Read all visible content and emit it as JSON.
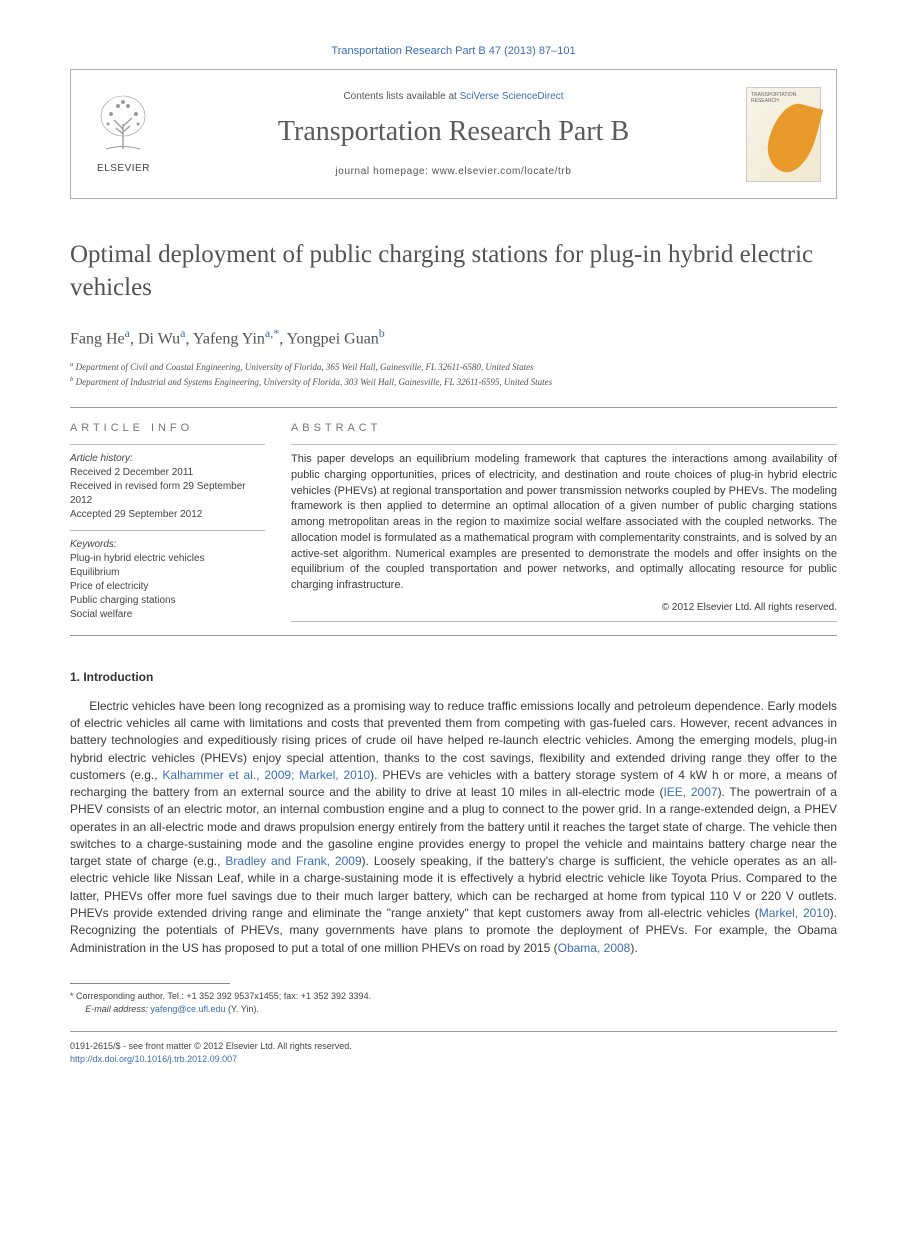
{
  "citation": "Transportation Research Part B 47 (2013) 87–101",
  "header": {
    "elsevier": "ELSEVIER",
    "contents_prefix": "Contents lists available at ",
    "contents_link": "SciVerse ScienceDirect",
    "journal_title": "Transportation Research Part B",
    "homepage_prefix": "journal homepage: ",
    "homepage_url": "www.elsevier.com/locate/trb",
    "cover_line1": "TRANSPORTATION",
    "cover_line2": "RESEARCH"
  },
  "article": {
    "title": "Optimal deployment of public charging stations for plug-in hybrid electric vehicles",
    "authors_html": [
      {
        "name": "Fang He",
        "aff": "a"
      },
      {
        "name": "Di Wu",
        "aff": "a"
      },
      {
        "name": "Yafeng Yin",
        "aff": "a,*",
        "corr": true
      },
      {
        "name": "Yongpei Guan",
        "aff": "b"
      }
    ],
    "affiliations": [
      {
        "label": "a",
        "text": "Department of Civil and Coastal Engineering, University of Florida, 365 Weil Hall, Gainesville, FL 32611-6580, United States"
      },
      {
        "label": "b",
        "text": "Department of Industrial and Systems Engineering, University of Florida, 303 Weil Hall, Gainesville, FL 32611-6595, United States"
      }
    ]
  },
  "info": {
    "header": "ARTICLE INFO",
    "history_title": "Article history:",
    "history": [
      "Received 2 December 2011",
      "Received in revised form 29 September 2012",
      "Accepted 29 September 2012"
    ],
    "keywords_title": "Keywords:",
    "keywords": [
      "Plug-in hybrid electric vehicles",
      "Equilibrium",
      "Price of electricity",
      "Public charging stations",
      "Social welfare"
    ]
  },
  "abstract": {
    "header": "ABSTRACT",
    "text": "This paper develops an equilibrium modeling framework that captures the interactions among availability of public charging opportunities, prices of electricity, and destination and route choices of plug-in hybrid electric vehicles (PHEVs) at regional transportation and power transmission networks coupled by PHEVs. The modeling framework is then applied to determine an optimal allocation of a given number of public charging stations among metropolitan areas in the region to maximize social welfare associated with the coupled networks. The allocation model is formulated as a mathematical program with complementarity constraints, and is solved by an active-set algorithm. Numerical examples are presented to demonstrate the models and offer insights on the equilibrium of the coupled transportation and power networks, and optimally allocating resource for public charging infrastructure.",
    "copyright": "© 2012 Elsevier Ltd. All rights reserved."
  },
  "intro": {
    "heading": "1. Introduction",
    "paragraph": "Electric vehicles have been long recognized as a promising way to reduce traffic emissions locally and petroleum dependence. Early models of electric vehicles all came with limitations and costs that prevented them from competing with gas-fueled cars. However, recent advances in battery technologies and expeditiously rising prices of crude oil have helped re-launch electric vehicles. Among the emerging models, plug-in hybrid electric vehicles (PHEVs) enjoy special attention, thanks to the cost savings, flexibility and extended driving range they offer to the customers (e.g., <a>Kalhammer et al., 2009; Markel, 2010</a>). PHEVs are vehicles with a battery storage system of 4 kW h or more, a means of recharging the battery from an external source and the ability to drive at least 10 miles in all-electric mode (<a>IEE, 2007</a>). The powertrain of a PHEV consists of an electric motor, an internal combustion engine and a plug to connect to the power grid. In a range-extended deign, a PHEV operates in an all-electric mode and draws propulsion energy entirely from the battery until it reaches the target state of charge. The vehicle then switches to a charge-sustaining mode and the gasoline engine provides energy to propel the vehicle and maintains battery charge near the target state of charge (e.g., <a>Bradley and Frank, 2009</a>). Loosely speaking, if the battery's charge is sufficient, the vehicle operates as an all-electric vehicle like Nissan Leaf, while in a charge-sustaining mode it is effectively a hybrid electric vehicle like Toyota Prius. Compared to the latter, PHEVs offer more fuel savings due to their much larger battery, which can be recharged at home from typical 110 V or 220 V outlets. PHEVs provide extended driving range and eliminate the \"range anxiety\" that kept customers away from all-electric vehicles (<a>Markel, 2010</a>). Recognizing the potentials of PHEVs, many governments have plans to promote the deployment of PHEVs. For example, the Obama Administration in the US has proposed to put a total of one million PHEVs on road by 2015 (<a>Obama, 2008</a>)."
  },
  "footnote": {
    "corr": "* Corresponding author. Tel.: +1 352 392 9537x1455; fax: +1 352 392 3394.",
    "email_label": "E-mail address:",
    "email": "yafeng@ce.ufl.edu",
    "email_suffix": "(Y. Yin)."
  },
  "bottom": {
    "issn_line": "0191-2615/$ - see front matter © 2012 Elsevier Ltd. All rights reserved.",
    "doi": "http://dx.doi.org/10.1016/j.trb.2012.09.007"
  }
}
